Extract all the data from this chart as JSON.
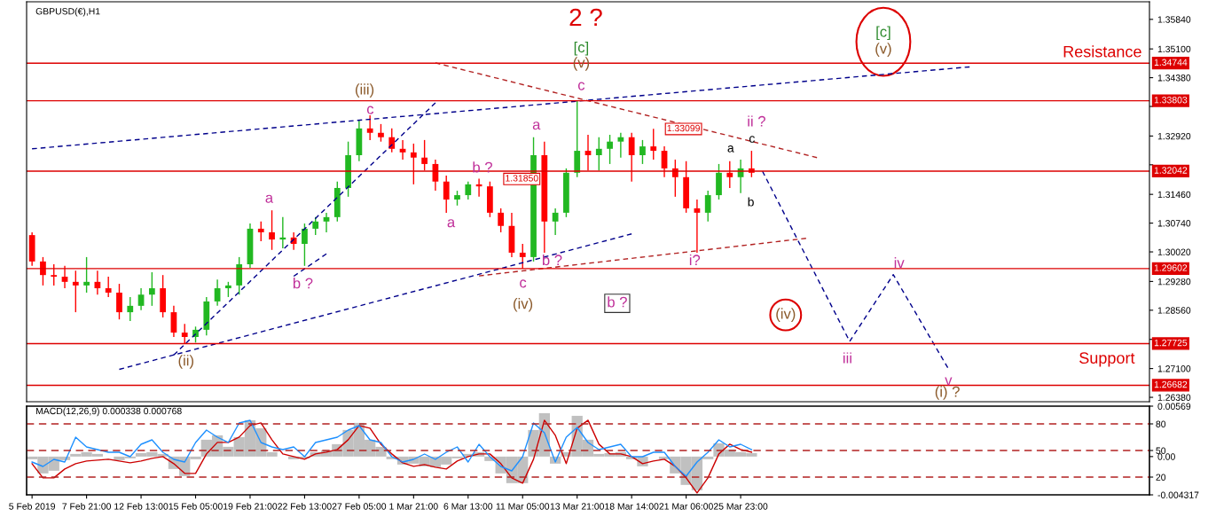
{
  "chart_data": [
    {
      "type": "candlestick",
      "title": "GBPUSD(€),H1",
      "series": [
        {
          "colors": [
            "#ff0000",
            "#ff0000",
            "#ff0000",
            "#ff0000",
            "#ff0000",
            "#22b822",
            "#ff0000",
            "#ff0000",
            "#ff0000",
            "#22b822",
            "#22b822",
            "#22b822",
            "#ff0000",
            "#ff0000",
            "#ff0000",
            "#22b822",
            "#22b822",
            "#22b822",
            "#22b822",
            "#22b822",
            "#22b822",
            "#ff0000",
            "#ff0000",
            "#22b822",
            "#ff0000",
            "#22b822",
            "#22b822",
            "#22b822",
            "#22b822",
            "#22b822",
            "#22b822",
            "#ff0000",
            "#ff0000",
            "#ff0000",
            "#ff0000",
            "#ff0000",
            "#ff0000",
            "#ff0000",
            "#ff0000",
            "#22b822",
            "#22b822",
            "#ff0000",
            "#ff0000",
            "#ff0000",
            "#ff0000",
            "#ff0000",
            "#22b822",
            "#ff0000",
            "#22b822",
            "#22b822",
            "#22b822",
            "#ff0000",
            "#22b822",
            "#22b822",
            "#22b822",
            "#ff0000",
            "#22b822",
            "#ff0000",
            "#ff0000",
            "#ff0000",
            "#ff0000",
            "#ff0000",
            "#22b822",
            "#22b822",
            "#ff0000",
            "#22b822",
            "#ff0000",
            null,
            null,
            null,
            null,
            null,
            null,
            null,
            null,
            null,
            null,
            null,
            null,
            null,
            null,
            null,
            null,
            null,
            null,
            null,
            null,
            null,
            null,
            null,
            null,
            null,
            null,
            null,
            null,
            null,
            null,
            null,
            null,
            null,
            null,
            null,
            null
          ],
          "ohlc": [
            [
              1.3044,
              1.3051,
              1.2967,
              1.2978
            ],
            [
              1.2978,
              1.2989,
              1.2918,
              1.2944
            ],
            [
              1.2944,
              1.2971,
              1.2918,
              1.294
            ],
            [
              1.294,
              1.2967,
              1.2911,
              1.2927
            ],
            [
              1.2927,
              1.2955,
              1.2851,
              1.2918
            ],
            [
              1.2918,
              1.2989,
              1.29,
              1.2927
            ],
            [
              1.2927,
              1.2955,
              1.2895,
              1.2911
            ],
            [
              1.2911,
              1.294,
              1.2889,
              1.29
            ],
            [
              1.29,
              1.2922,
              1.2833,
              1.2851
            ],
            [
              1.2851,
              1.2889,
              1.2829,
              1.2867
            ],
            [
              1.2867,
              1.2911,
              1.2856,
              1.2895
            ],
            [
              1.2895,
              1.2951,
              1.2867,
              1.2911
            ],
            [
              1.2911,
              1.2944,
              1.2838,
              1.2851
            ],
            [
              1.2851,
              1.2867,
              1.2789,
              1.28
            ],
            [
              1.28,
              1.2822,
              1.2773,
              1.2789
            ],
            [
              1.2789,
              1.2815,
              1.2775,
              1.2807
            ],
            [
              1.2807,
              1.2889,
              1.2793,
              1.2878
            ],
            [
              1.2878,
              1.2933,
              1.2867,
              1.2911
            ],
            [
              1.2911,
              1.2927,
              1.2889,
              1.2918
            ],
            [
              1.2918,
              1.2989,
              1.2895,
              1.2971
            ],
            [
              1.2971,
              1.3073,
              1.2962,
              1.306
            ],
            [
              1.306,
              1.3078,
              1.3029,
              1.3051
            ],
            [
              1.3051,
              1.3106,
              1.3007,
              1.3033
            ],
            [
              1.3033,
              1.3089,
              1.3011,
              1.3038
            ],
            [
              1.3038,
              1.3051,
              1.3007,
              1.3022
            ],
            [
              1.3022,
              1.3073,
              1.2967,
              1.306
            ],
            [
              1.306,
              1.3089,
              1.3044,
              1.3078
            ],
            [
              1.3078,
              1.31,
              1.3051,
              1.3089
            ],
            [
              1.3089,
              1.3178,
              1.3078,
              1.3162
            ],
            [
              1.3162,
              1.3278,
              1.314,
              1.3244
            ],
            [
              1.3244,
              1.3333,
              1.3229,
              1.3311
            ],
            [
              1.3311,
              1.3344,
              1.3282,
              1.33
            ],
            [
              1.33,
              1.3322,
              1.3278,
              1.3289
            ],
            [
              1.3289,
              1.3311,
              1.3251,
              1.326
            ],
            [
              1.326,
              1.3282,
              1.3233,
              1.3251
            ],
            [
              1.3251,
              1.3273,
              1.3171,
              1.3238
            ],
            [
              1.3238,
              1.3282,
              1.3206,
              1.3222
            ],
            [
              1.3222,
              1.3233,
              1.3155,
              1.3178
            ],
            [
              1.3178,
              1.3193,
              1.31,
              1.3133
            ],
            [
              1.3133,
              1.3155,
              1.3118,
              1.3144
            ],
            [
              1.3144,
              1.3178,
              1.3133,
              1.3171
            ],
            [
              1.3171,
              1.3185,
              1.314,
              1.3166
            ],
            [
              1.3166,
              1.3178,
              1.3089,
              1.31
            ],
            [
              1.31,
              1.3111,
              1.3051,
              1.3067
            ],
            [
              1.3067,
              1.31,
              1.2989,
              1.3
            ],
            [
              1.3,
              1.3022,
              1.296,
              1.2989
            ],
            [
              1.2989,
              1.3289,
              1.2978,
              1.3244
            ],
            [
              1.3244,
              1.3278,
              1.3,
              1.3078
            ],
            [
              1.3078,
              1.3111,
              1.3044,
              1.31
            ],
            [
              1.31,
              1.3211,
              1.3089,
              1.32
            ],
            [
              1.32,
              1.338,
              1.3189,
              1.3255
            ],
            [
              1.3255,
              1.3295,
              1.3206,
              1.3244
            ],
            [
              1.3244,
              1.3289,
              1.3206,
              1.326
            ],
            [
              1.326,
              1.3295,
              1.3222,
              1.3278
            ],
            [
              1.3278,
              1.33,
              1.3238,
              1.3289
            ],
            [
              1.3289,
              1.33,
              1.3178,
              1.3244
            ],
            [
              1.3244,
              1.3282,
              1.3222,
              1.3266
            ],
            [
              1.3266,
              1.331,
              1.3233,
              1.3255
            ],
            [
              1.3255,
              1.3266,
              1.3189,
              1.3211
            ],
            [
              1.3211,
              1.3233,
              1.314,
              1.3189
            ],
            [
              1.3189,
              1.3229,
              1.31,
              1.3111
            ],
            [
              1.3111,
              1.3133,
              1.3,
              1.31
            ],
            [
              1.31,
              1.3155,
              1.3078,
              1.3144
            ],
            [
              1.3144,
              1.3222,
              1.3133,
              1.32
            ],
            [
              1.32,
              1.3229,
              1.3162,
              1.3189
            ],
            [
              1.3189,
              1.3233,
              1.3149,
              1.3211
            ],
            [
              1.3211,
              1.3255,
              1.3189,
              1.32
            ],
            null,
            null,
            null,
            null,
            null,
            null,
            null,
            null,
            null,
            null,
            null,
            null,
            null,
            null,
            null,
            null,
            null,
            null,
            null,
            null,
            null,
            null,
            null,
            null,
            null,
            null,
            null,
            null,
            null,
            null,
            null,
            null,
            null,
            null,
            null,
            null
          ]
        },
        {
          "type": "line",
          "color": "#00008b",
          "line_style": "dashed",
          "values": [
            1.326,
            null,
            null,
            null,
            null,
            null,
            null,
            null,
            null,
            null,
            null,
            null,
            null,
            null,
            null,
            null,
            null,
            null,
            null,
            null,
            null,
            null,
            null,
            null,
            null,
            null,
            null,
            null,
            null,
            null,
            null,
            null,
            null,
            null,
            null,
            null,
            null,
            null,
            null,
            null,
            null,
            null,
            null,
            null,
            null,
            null,
            null,
            null,
            null,
            null,
            null,
            null,
            null,
            null,
            null,
            null,
            null,
            null,
            null,
            null,
            null,
            null,
            null,
            null,
            null,
            null,
            null,
            null,
            null,
            null,
            null,
            null,
            null,
            null,
            null,
            null,
            null,
            null,
            null,
            null,
            null,
            null,
            null,
            null,
            null,
            null,
            1.3465,
            null,
            null,
            null,
            null,
            null,
            null,
            null,
            null,
            null,
            null,
            null,
            null,
            null,
            null,
            null,
            null
          ]
        },
        {
          "type": "line",
          "color": "#00008b",
          "line_style": "dashed",
          "values": [
            null,
            null,
            null,
            null,
            null,
            null,
            null,
            null,
            1.2708,
            null,
            null,
            null,
            null,
            null,
            null,
            null,
            null,
            null,
            null,
            null,
            null,
            null,
            null,
            null,
            null,
            null,
            null,
            null,
            null,
            null,
            null,
            null,
            null,
            null,
            null,
            null,
            null,
            null,
            null,
            null,
            null,
            null,
            null,
            null,
            null,
            null,
            null,
            null,
            null,
            null,
            null,
            null,
            null,
            null,
            null,
            1.3047,
            null,
            null,
            null,
            null,
            null,
            null,
            null,
            null,
            null,
            null,
            null,
            null,
            null,
            null,
            null,
            null,
            null,
            null,
            null,
            null,
            null,
            null,
            null,
            null,
            null,
            null,
            null,
            null,
            null,
            null,
            null,
            null,
            null,
            null,
            null,
            null,
            null,
            null,
            null,
            null,
            null,
            null,
            null,
            null,
            null,
            null,
            null
          ]
        },
        {
          "type": "line",
          "color": "#00008b",
          "line_style": "dashed",
          "values": [
            null,
            null,
            null,
            null,
            null,
            null,
            null,
            null,
            null,
            null,
            null,
            null,
            null,
            1.2744,
            null,
            null,
            null,
            null,
            null,
            null,
            null,
            null,
            null,
            null,
            null,
            null,
            null,
            null,
            null,
            null,
            null,
            null,
            null,
            null,
            null,
            null,
            null,
            1.3375,
            null,
            null,
            null,
            null,
            null,
            null,
            null,
            null,
            null,
            null,
            null,
            null,
            null,
            null,
            null,
            null,
            null,
            null,
            null,
            null,
            null,
            null,
            null,
            null,
            null,
            null,
            null,
            null,
            null,
            null,
            null,
            null,
            null,
            null,
            null,
            null,
            null,
            null,
            null,
            null,
            null,
            null,
            null,
            null,
            null,
            null,
            null,
            null,
            null,
            null,
            null,
            null,
            null,
            null,
            null,
            null,
            null,
            null,
            null,
            null,
            null,
            null,
            null,
            null,
            null
          ]
        },
        {
          "type": "line",
          "color": "#00008b",
          "line_style": "dashed",
          "values": [
            null,
            null,
            null,
            null,
            null,
            null,
            null,
            null,
            null,
            null,
            null,
            null,
            null,
            null,
            null,
            null,
            null,
            null,
            null,
            null,
            null,
            null,
            null,
            null,
            1.2941,
            null,
            null,
            1.2997,
            null,
            null,
            null,
            null,
            null,
            null,
            null,
            null,
            null,
            null,
            null,
            null,
            null,
            null,
            null,
            null,
            null,
            null,
            null,
            null,
            null,
            null,
            null,
            null,
            null,
            null,
            null,
            null,
            null,
            null,
            null,
            null,
            null,
            null,
            null,
            null,
            null,
            null,
            null,
            null,
            null,
            null,
            null,
            null,
            null,
            null,
            null,
            null,
            null,
            null,
            null,
            null,
            null,
            null,
            null,
            null,
            null,
            null,
            null,
            null,
            null,
            null,
            null,
            null,
            null,
            null,
            null,
            null,
            null,
            null,
            null,
            null,
            null,
            null,
            null
          ]
        },
        {
          "type": "line",
          "color": "#b22222",
          "line_style": "dashed",
          "values": [
            null,
            null,
            null,
            null,
            null,
            null,
            null,
            null,
            null,
            null,
            null,
            null,
            null,
            null,
            null,
            null,
            null,
            null,
            null,
            null,
            null,
            null,
            null,
            null,
            null,
            null,
            null,
            null,
            null,
            null,
            null,
            null,
            null,
            null,
            null,
            null,
            null,
            1.3475,
            null,
            null,
            null,
            null,
            null,
            null,
            null,
            null,
            null,
            null,
            null,
            null,
            null,
            null,
            null,
            null,
            null,
            null,
            null,
            null,
            null,
            null,
            null,
            null,
            null,
            null,
            null,
            null,
            null,
            null,
            null,
            null,
            null,
            null,
            1.3238,
            null,
            null,
            null,
            null,
            null,
            null,
            null,
            null,
            null,
            null,
            null,
            null,
            null,
            null,
            null,
            null,
            null,
            null,
            null,
            null,
            null,
            null,
            null,
            null,
            null,
            null,
            null,
            null,
            null,
            null
          ]
        },
        {
          "type": "line",
          "color": "#b22222",
          "line_style": "dashed",
          "values": [
            null,
            null,
            null,
            null,
            null,
            null,
            null,
            null,
            null,
            null,
            null,
            null,
            null,
            null,
            null,
            null,
            null,
            null,
            null,
            null,
            null,
            null,
            null,
            null,
            null,
            null,
            null,
            null,
            null,
            null,
            null,
            null,
            null,
            null,
            null,
            null,
            null,
            null,
            null,
            null,
            null,
            1.2942,
            null,
            null,
            null,
            null,
            null,
            null,
            null,
            null,
            null,
            null,
            null,
            null,
            null,
            null,
            null,
            null,
            null,
            null,
            null,
            null,
            null,
            null,
            null,
            null,
            null,
            null,
            null,
            null,
            null,
            1.3036,
            null,
            null,
            null,
            null,
            null,
            null,
            null,
            null,
            null,
            null,
            null,
            null,
            null,
            null,
            null,
            null,
            null,
            null,
            null,
            null,
            null,
            null,
            null,
            null,
            null,
            null,
            null,
            null,
            null,
            null,
            null
          ]
        },
        {
          "type": "line",
          "color": "#00008b",
          "line_style": "dashed",
          "values": [
            null,
            null,
            null,
            null,
            null,
            null,
            null,
            null,
            null,
            null,
            null,
            null,
            null,
            null,
            null,
            null,
            null,
            null,
            null,
            null,
            null,
            null,
            null,
            null,
            null,
            null,
            null,
            null,
            null,
            null,
            null,
            null,
            null,
            null,
            null,
            null,
            null,
            null,
            null,
            null,
            null,
            null,
            null,
            null,
            null,
            null,
            null,
            null,
            null,
            null,
            null,
            null,
            null,
            null,
            null,
            null,
            null,
            null,
            null,
            null,
            null,
            null,
            null,
            null,
            null,
            null,
            null,
            1.3204,
            null,
            null,
            null,
            null,
            null,
            null,
            null,
            1.2778,
            null,
            null,
            null,
            1.2945,
            null,
            null,
            null,
            null,
            1.2712,
            null,
            null,
            null,
            null,
            null,
            null,
            null,
            null,
            null,
            null,
            null,
            null,
            null,
            null,
            null,
            null,
            null,
            null
          ]
        }
      ],
      "ylim": [
        1.2627,
        1.3628
      ],
      "yticks": [
        {
          "value": 1.3584,
          "label": "1.35840"
        },
        {
          "value": 1.351,
          "label": "1.35100"
        },
        {
          "value": 1.3438,
          "label": "1.34380"
        },
        {
          "value": 1.3366,
          "label": null
        },
        {
          "value": 1.3292,
          "label": "1.32920"
        },
        {
          "value": 1.322,
          "label": null
        },
        {
          "value": 1.3146,
          "label": "1.31460"
        },
        {
          "value": 1.3074,
          "label": "1.30740"
        },
        {
          "value": 1.3002,
          "label": "1.30020"
        },
        {
          "value": 1.2928,
          "label": "1.29280"
        },
        {
          "value": 1.2856,
          "label": "1.28560"
        },
        {
          "value": 1.2783,
          "label": null
        },
        {
          "value": 1.271,
          "label": "1.27100"
        },
        {
          "value": 1.2638,
          "label": "1.26380"
        }
      ],
      "tick_labels": "y",
      "ref_lines": [
        {
          "axis": "y",
          "value": 1.34744,
          "label": "1.34744",
          "color": "#dd0000"
        },
        {
          "axis": "y",
          "value": 1.33803,
          "label": "1.33803",
          "color": "#dd0000"
        },
        {
          "axis": "y",
          "value": 1.32042,
          "label": "1.32042",
          "color": "#dd0000"
        },
        {
          "axis": "y",
          "value": 1.29602,
          "label": "1.29602",
          "color": "#dd0000"
        },
        {
          "axis": "y",
          "value": 1.27725,
          "label": "1.27725",
          "color": "#dd0000"
        },
        {
          "axis": "y",
          "value": 1.26682,
          "label": "1.26682",
          "color": "#dd0000"
        }
      ],
      "annotations": [
        "2 ?",
        "[c]",
        "(v)",
        "c",
        "(iii)",
        "c",
        "a",
        "b ?",
        "(ii)",
        "a",
        "b ?",
        "a",
        "b ?",
        "c",
        "(iv)",
        "b ?",
        "i?",
        "ii ?",
        "a",
        "c",
        "b",
        "(iv)",
        "[c]",
        "(v)",
        "Resistance",
        "Support",
        "iii",
        "iv",
        "v",
        "(i) ?",
        "1.33099",
        "1.31850"
      ]
    },
    {
      "type": "line",
      "title": "MACD(12,26,9) 0.000338 0.000768",
      "categories": [
        "5 Feb 2019",
        null,
        null,
        null,
        null,
        "7 Feb 21:00",
        null,
        null,
        null,
        null,
        "12 Feb 13:00",
        null,
        null,
        null,
        null,
        "15 Feb 05:00",
        null,
        null,
        null,
        null,
        "19 Feb 21:00",
        null,
        null,
        null,
        null,
        "22 Feb 13:00",
        null,
        null,
        null,
        null,
        "27 Feb 05:00",
        null,
        null,
        null,
        null,
        "1 Mar 21:00",
        null,
        null,
        null,
        null,
        "6 Mar 13:00",
        null,
        null,
        null,
        null,
        "11 Mar 05:00",
        null,
        null,
        null,
        null,
        "13 Mar 21:00",
        null,
        null,
        null,
        null,
        "18 Mar 14:00",
        null,
        null,
        null,
        null,
        "21 Mar 06:00",
        null,
        null,
        null,
        null,
        "25 Mar 23:00",
        null,
        null,
        null,
        null,
        null,
        null,
        null,
        null,
        null,
        null,
        null,
        null,
        null,
        null,
        null,
        null,
        null,
        null,
        null,
        null,
        null,
        null,
        null,
        null,
        null,
        null,
        null,
        null,
        null,
        null,
        null,
        null,
        null,
        null,
        null,
        null,
        null
      ],
      "series": [
        {
          "type": "bar",
          "color": "#c0c0c0",
          "values": [
            -0.0003,
            -0.0019,
            -0.0016,
            -0.0004,
            0.0003,
            0.0005,
            0.0003,
            0.0,
            -0.0004,
            -0.0002,
            0.0004,
            0.0005,
            0.0003,
            -0.0014,
            -0.0022,
            -0.0003,
            0.0019,
            0.0024,
            0.0011,
            0.0022,
            0.0041,
            0.0032,
            0.0005,
            0.0,
            -0.0003,
            -0.0002,
            0.0005,
            0.0007,
            0.0014,
            0.003,
            0.0038,
            0.0019,
            0.0011,
            -0.0003,
            -0.0009,
            -0.0008,
            -0.0011,
            -0.0012,
            -0.0009,
            -0.0002,
            0.0003,
            0.0005,
            -0.0005,
            -0.0019,
            -0.003,
            -0.003,
            0.003,
            0.0049,
            -0.0008,
            0.0005,
            0.0046,
            0.0019,
            0.0003,
            0.0004,
            0.0005,
            -0.0003,
            -0.0011,
            0.0,
            -0.0003,
            -0.0019,
            -0.0032,
            -0.0038,
            -0.0003,
            0.0015,
            0.0008,
            0.0005,
            0.0004,
            null,
            null,
            null,
            null,
            null,
            null,
            null,
            null,
            null,
            null,
            null,
            null,
            null,
            null,
            null,
            null,
            null,
            null,
            null,
            null,
            null,
            null,
            null,
            null,
            null,
            null,
            null,
            null,
            null,
            null,
            null,
            null,
            null,
            null,
            null,
            null
          ]
        },
        {
          "type": "line",
          "color": "#1e90ff",
          "axis": "y2",
          "values": [
            37,
            32,
            40,
            37,
            65,
            54,
            51,
            48,
            48,
            43,
            57,
            62,
            48,
            40,
            37,
            59,
            73,
            65,
            59,
            81,
            84,
            59,
            54,
            51,
            54,
            43,
            59,
            62,
            65,
            73,
            78,
            62,
            59,
            43,
            37,
            40,
            46,
            40,
            48,
            54,
            37,
            57,
            43,
            32,
            27,
            43,
            81,
            70,
            37,
            65,
            76,
            59,
            51,
            54,
            57,
            43,
            43,
            48,
            48,
            32,
            21,
            37,
            48,
            62,
            54,
            57,
            51,
            null,
            null,
            null,
            null,
            null,
            null,
            null,
            null,
            null,
            null,
            null,
            null,
            null,
            null,
            null,
            null,
            null,
            null,
            null,
            null,
            null,
            null,
            null,
            null,
            null,
            null,
            null,
            null,
            null,
            null,
            null,
            null,
            null,
            null,
            null,
            null
          ]
        },
        {
          "color": "#cc0000",
          "values": [
            -0.0008,
            -0.0024,
            -0.0024,
            -0.0014,
            -0.0008,
            -0.0005,
            -0.0004,
            -0.0003,
            -0.0005,
            -0.0007,
            -0.0005,
            -0.0002,
            0.0,
            -0.0008,
            -0.0019,
            -0.0019,
            0.0003,
            0.0016,
            0.0016,
            0.0022,
            0.0035,
            0.0038,
            0.0019,
            0.0003,
            0.0,
            -0.0003,
            0.0003,
            0.0005,
            0.0008,
            0.0019,
            0.0035,
            0.0032,
            0.0014,
            0.0003,
            -0.0007,
            -0.0011,
            -0.0009,
            -0.0012,
            -0.0014,
            -0.0005,
            0.0,
            0.0003,
            0.0003,
            -0.0008,
            -0.0024,
            -0.003,
            -0.0003,
            0.0041,
            0.0024,
            -0.0008,
            0.0032,
            0.0041,
            0.0014,
            0.0003,
            0.0003,
            0.0,
            -0.0008,
            -0.0005,
            -0.0003,
            -0.0011,
            -0.0024,
            -0.0041,
            -0.0024,
            0.0003,
            0.0014,
            0.0008,
            0.0005,
            null,
            null,
            null,
            null,
            null,
            null,
            null,
            null,
            null,
            null,
            null,
            null,
            null,
            null,
            null,
            null,
            null,
            null,
            null,
            null,
            null,
            null,
            null,
            null,
            null,
            null,
            null,
            null,
            null,
            null,
            null,
            null,
            null,
            null,
            null,
            null
          ]
        }
      ],
      "ylim": [
        -0.004317,
        0.00569
      ],
      "yticks": [
        {
          "value": 0.00569,
          "label": "0.00569"
        },
        {
          "value": 0,
          "label": "0.00"
        },
        {
          "value": -0.004317,
          "label": "-0.004317"
        }
      ],
      "y2lim": [
        0,
        100
      ],
      "y2ticks": [
        20,
        50,
        80
      ],
      "ref_lines": [
        {
          "axis": "y2",
          "value": 80,
          "color": "#b22222",
          "line_style": "dashed"
        },
        {
          "axis": "y2",
          "value": 50,
          "color": "#b22222",
          "line_style": "dashed"
        },
        {
          "axis": "y2",
          "value": 20,
          "color": "#b22222",
          "line_style": "dashed"
        }
      ]
    }
  ]
}
